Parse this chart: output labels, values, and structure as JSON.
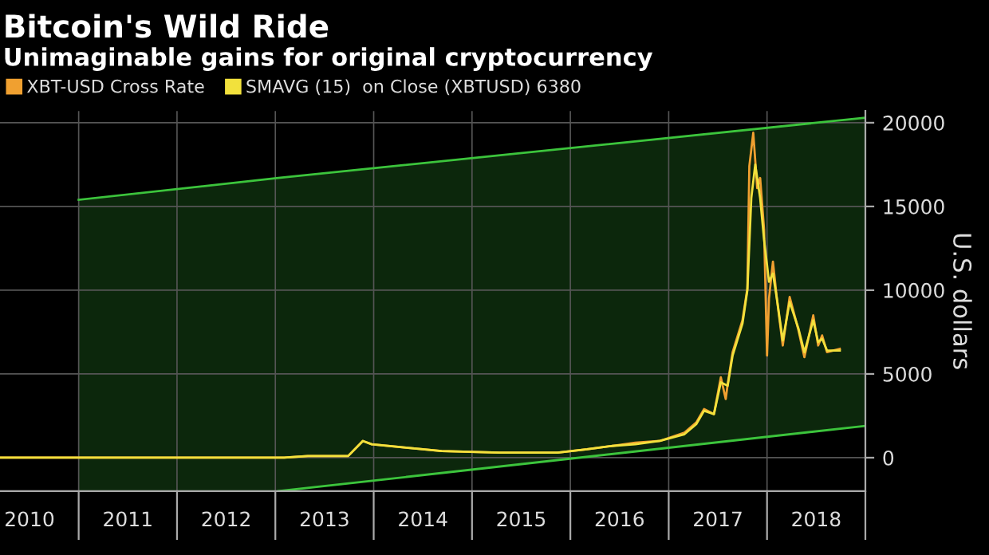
{
  "chart_data": {
    "type": "line",
    "title": "Bitcoin's Wild Ride",
    "subtitle": "Unimaginable gains for original cryptocurrency",
    "ylabel": "U.S. dollars",
    "xlim": [
      2010.2,
      2019.0
    ],
    "ylim": [
      -2000,
      20700
    ],
    "xticks": [
      {
        "value": 2011,
        "label": null
      },
      {
        "value": 2012,
        "label": null
      },
      {
        "value": 2013,
        "label": null
      },
      {
        "value": 2014,
        "label": null
      },
      {
        "value": 2015,
        "label": null
      },
      {
        "value": 2016,
        "label": null
      },
      {
        "value": 2017,
        "label": null
      },
      {
        "value": 2018,
        "label": null
      },
      {
        "value": 2019,
        "label": null
      },
      {
        "value": 2010.5,
        "label": "2010"
      },
      {
        "value": 2011.5,
        "label": "2011"
      },
      {
        "value": 2012.5,
        "label": "2012"
      },
      {
        "value": 2013.5,
        "label": "2013"
      },
      {
        "value": 2014.5,
        "label": "2014"
      },
      {
        "value": 2015.5,
        "label": "2015"
      },
      {
        "value": 2016.5,
        "label": "2016"
      },
      {
        "value": 2017.5,
        "label": "2017"
      },
      {
        "value": 2018.5,
        "label": "2018"
      }
    ],
    "yticks": [
      0,
      5000,
      10000,
      15000,
      20000
    ],
    "grid": true,
    "legend": "top left",
    "line_style": "solid",
    "marker": "none",
    "series": [
      {
        "type": "line",
        "color": "#3cc43c",
        "x": [
          2011,
          2013.03,
          2019.0
        ],
        "values": [
          15400,
          16700,
          20300
        ],
        "lower": [
          -2000,
          -2000,
          1900
        ],
        "upper": [
          15400,
          16700,
          20300
        ]
      },
      {
        "type": "line",
        "color": "#3cc43c",
        "x": [
          2013.03,
          2019.0
        ],
        "values": [
          -2000,
          1900
        ]
      },
      {
        "name": "XBT-USD Cross Rate",
        "color": "#f0a030",
        "x": [
          2010.2,
          2012.5,
          2013.09,
          2013.33,
          2013.74,
          2013.89,
          2013.98,
          2014.33,
          2014.69,
          2015.28,
          2015.87,
          2016.17,
          2016.42,
          2016.66,
          2016.91,
          2017.16,
          2017.28,
          2017.36,
          2017.46,
          2017.53,
          2017.58,
          2017.6,
          2017.65,
          2017.75,
          2017.8,
          2017.82,
          2017.86,
          2017.9,
          2017.93,
          2017.97,
          2018.0,
          2018.02,
          2018.06,
          2018.1,
          2018.16,
          2018.23,
          2018.32,
          2018.38,
          2018.47,
          2018.52,
          2018.56,
          2018.61,
          2018.74
        ],
        "values": [
          0,
          0,
          0,
          100,
          100,
          1000,
          800,
          600,
          400,
          300,
          300,
          500,
          700,
          900,
          1000,
          1500,
          2100,
          2900,
          2600,
          4800,
          3500,
          4400,
          6300,
          8200,
          10100,
          17400,
          19400,
          16100,
          16700,
          13600,
          6100,
          9500,
          11700,
          9500,
          6700,
          9600,
          7600,
          6000,
          8500,
          6700,
          7300,
          6300,
          6500
        ]
      },
      {
        "name": "SMAVG (15)  on Close (XBTUSD) 6380",
        "color": "#f2e13c",
        "x": [
          2010.2,
          2012.5,
          2013.09,
          2013.33,
          2013.74,
          2013.89,
          2013.98,
          2014.33,
          2014.69,
          2015.28,
          2015.87,
          2016.17,
          2016.42,
          2016.66,
          2016.91,
          2017.16,
          2017.28,
          2017.36,
          2017.46,
          2017.53,
          2017.6,
          2017.65,
          2017.75,
          2017.8,
          2017.84,
          2017.88,
          2017.93,
          2017.97,
          2018.02,
          2018.06,
          2018.1,
          2018.16,
          2018.23,
          2018.32,
          2018.38,
          2018.47,
          2018.52,
          2018.56,
          2018.61,
          2018.74
        ],
        "values": [
          0,
          0,
          0,
          100,
          100,
          1000,
          800,
          600,
          400,
          300,
          300,
          500,
          700,
          800,
          1000,
          1400,
          2000,
          2800,
          2600,
          4500,
          4300,
          6100,
          8000,
          10000,
          15500,
          17500,
          15500,
          13000,
          10500,
          11000,
          9500,
          7000,
          9300,
          7700,
          6300,
          8200,
          6900,
          7100,
          6400,
          6400
        ]
      }
    ]
  }
}
